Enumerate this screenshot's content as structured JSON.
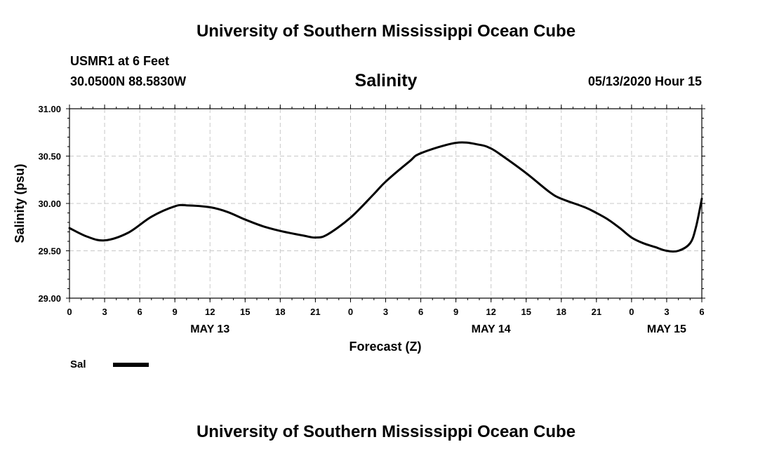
{
  "header": {
    "title": "University of Southern Mississippi Ocean Cube",
    "station": "USMR1 at 6 Feet",
    "coords": "30.0500N 88.5830W",
    "date": "05/13/2020 Hour 15"
  },
  "footer": {
    "title": "University of Southern Mississippi Ocean Cube"
  },
  "legend": {
    "label": "Sal",
    "color": "#000000"
  },
  "chart_data": {
    "type": "line",
    "title": "Salinity",
    "xlabel": "Forecast (Z)",
    "ylabel": "Salinity (psu)",
    "ylim": [
      29.0,
      31.0
    ],
    "y_ticks": [
      "29.00",
      "29.50",
      "30.00",
      "30.50",
      "31.00"
    ],
    "x_hours_range": [
      0,
      54
    ],
    "x_tick_labels": [
      "0",
      "3",
      "6",
      "9",
      "12",
      "15",
      "18",
      "21",
      "0",
      "3",
      "6",
      "9",
      "12",
      "15",
      "18",
      "21",
      "0",
      "3",
      "6"
    ],
    "date_labels": [
      {
        "label": "MAY 13",
        "hour": 12
      },
      {
        "label": "MAY 14",
        "hour": 36
      },
      {
        "label": "MAY 15",
        "hour": 51
      }
    ],
    "grid": true,
    "legend_position": "bottom-left",
    "series": [
      {
        "name": "Sal",
        "color": "#000000",
        "x": [
          0,
          1.5,
          3,
          5,
          7,
          9,
          10,
          12,
          13.5,
          15,
          16.5,
          18,
          20,
          21,
          22,
          24,
          26,
          27,
          29,
          30,
          33,
          35,
          36,
          37,
          39,
          41,
          42,
          44,
          45,
          46,
          47,
          48,
          49,
          50,
          51,
          52,
          53,
          53.5,
          54
        ],
        "values": [
          29.74,
          29.65,
          29.61,
          29.69,
          29.86,
          29.97,
          29.98,
          29.96,
          29.91,
          29.83,
          29.76,
          29.71,
          29.66,
          29.64,
          29.67,
          29.85,
          30.1,
          30.23,
          30.44,
          30.53,
          30.64,
          30.62,
          30.58,
          30.5,
          30.32,
          30.12,
          30.05,
          29.96,
          29.9,
          29.83,
          29.74,
          29.64,
          29.58,
          29.54,
          29.5,
          29.5,
          29.58,
          29.75,
          30.05
        ]
      }
    ]
  }
}
